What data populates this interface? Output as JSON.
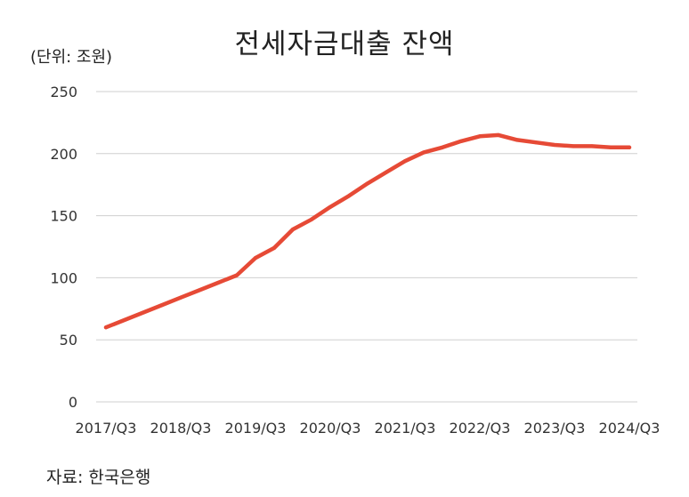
{
  "header": {
    "title": "전세자금대출 잔액",
    "unit_label": "(단위: 조원)"
  },
  "footer": {
    "source": "자료: 한국은행"
  },
  "chart_data": {
    "type": "line",
    "title": "전세자금대출 잔액",
    "xlabel": "",
    "ylabel": "(단위: 조원)",
    "ylim": [
      0,
      250
    ],
    "yticks": [
      0,
      50,
      100,
      150,
      200,
      250
    ],
    "grid": true,
    "x_tick_labels": [
      "2017/Q3",
      "2018/Q3",
      "2019/Q3",
      "2020/Q3",
      "2021/Q3",
      "2022/Q3",
      "2023/Q3",
      "2024/Q3"
    ],
    "x": [
      "2017/Q3",
      "2017/Q4",
      "2018/Q1",
      "2018/Q2",
      "2018/Q3",
      "2018/Q4",
      "2019/Q1",
      "2019/Q2",
      "2019/Q3",
      "2019/Q4",
      "2020/Q1",
      "2020/Q2",
      "2020/Q3",
      "2020/Q4",
      "2021/Q1",
      "2021/Q2",
      "2021/Q3",
      "2021/Q4",
      "2022/Q1",
      "2022/Q2",
      "2022/Q3",
      "2022/Q4",
      "2023/Q1",
      "2023/Q2",
      "2023/Q3",
      "2023/Q4",
      "2024/Q1",
      "2024/Q2",
      "2024/Q3"
    ],
    "series": [
      {
        "name": "전세자금대출 잔액",
        "color": "#e64a36",
        "values": [
          60,
          66,
          72,
          78,
          84,
          90,
          96,
          102,
          116,
          124,
          139,
          147,
          157,
          166,
          176,
          185,
          194,
          201,
          205,
          210,
          214,
          215,
          211,
          209,
          207,
          206,
          206,
          205,
          205
        ]
      }
    ]
  }
}
